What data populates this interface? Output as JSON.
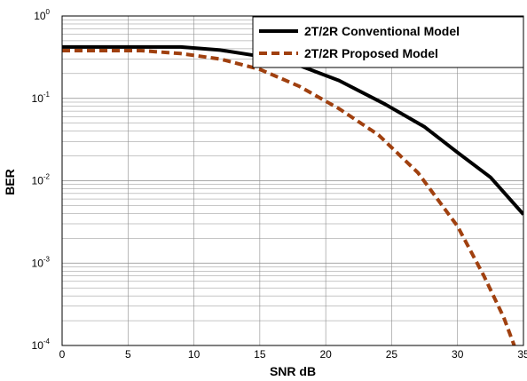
{
  "chart_data": {
    "type": "line",
    "title": "",
    "xlabel": "SNR dB",
    "ylabel": "BER",
    "xlim": [
      0,
      35
    ],
    "ylim": [
      0.0001,
      1
    ],
    "y_scale": "log",
    "grid": true,
    "x_ticks": [
      0,
      5,
      10,
      15,
      20,
      25,
      30,
      35
    ],
    "y_ticks": [
      {
        "value": 0.0001,
        "base": "10",
        "exp": "-4"
      },
      {
        "value": 0.001,
        "base": "10",
        "exp": "-3"
      },
      {
        "value": 0.01,
        "base": "10",
        "exp": "-2"
      },
      {
        "value": 0.1,
        "base": "10",
        "exp": "-1"
      },
      {
        "value": 1,
        "base": "10",
        "exp": "0"
      }
    ],
    "legend_position": "top-right",
    "series": [
      {
        "name": "2T/2R Conventional Model",
        "color": "#000000",
        "style": "solid",
        "x": [
          0,
          3,
          6,
          9,
          12,
          15,
          18,
          21,
          24.5,
          27.5,
          30,
          32.5,
          35
        ],
        "y": [
          0.42,
          0.42,
          0.42,
          0.42,
          0.385,
          0.325,
          0.25,
          0.165,
          0.085,
          0.045,
          0.022,
          0.011,
          0.0039
        ]
      },
      {
        "name": "2T/2R Proposed Model",
        "color": "#a0400f",
        "style": "dashed",
        "x": [
          0,
          3,
          6,
          9,
          12,
          15,
          18,
          21,
          24,
          27,
          30,
          32,
          33.5,
          34.3
        ],
        "y": [
          0.38,
          0.38,
          0.38,
          0.35,
          0.3,
          0.225,
          0.14,
          0.075,
          0.036,
          0.0125,
          0.0028,
          0.0007,
          0.00022,
          0.0001
        ]
      }
    ]
  }
}
